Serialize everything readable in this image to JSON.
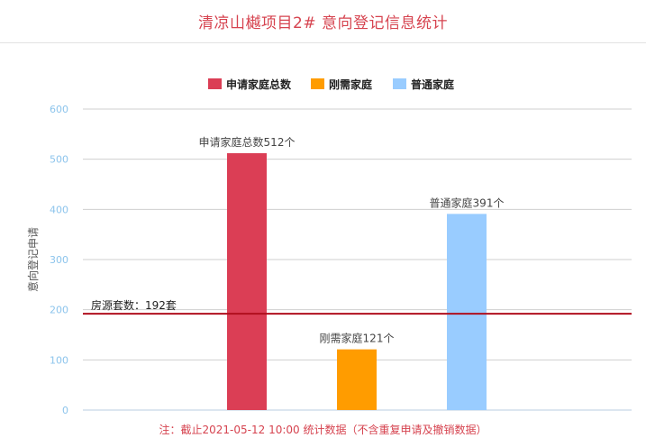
{
  "page": {
    "title": "清凉山樾项目2# 意向登记信息统计",
    "footnote": "注：截止2021-05-12 10:00 统计数据（不含重复申请及撤销数据）"
  },
  "chart_data": {
    "type": "bar",
    "title": "",
    "xlabel": "",
    "ylabel": "意向登记申请",
    "ylim": [
      0,
      600
    ],
    "yticks": [
      0,
      100,
      200,
      300,
      400,
      500,
      600
    ],
    "grid": true,
    "legend_position": "top-center",
    "series": [
      {
        "name": "申请家庭总数",
        "values": [
          512
        ],
        "color": "#db3e55",
        "data_label": "申请家庭总数512个"
      },
      {
        "name": "刚需家庭",
        "values": [
          121
        ],
        "color": "#ff9c00",
        "data_label": "刚需家庭121个"
      },
      {
        "name": "普通家庭",
        "values": [
          391
        ],
        "color": "#99ccff",
        "data_label": "普通家庭391个"
      }
    ],
    "reference_line": {
      "value": 192,
      "label": "房源套数：192套",
      "color": "#b00f1e"
    },
    "colors": {
      "axis_text": "#8cc4ec",
      "grid": "#cfcfcf",
      "title": "#d6434f"
    }
  }
}
